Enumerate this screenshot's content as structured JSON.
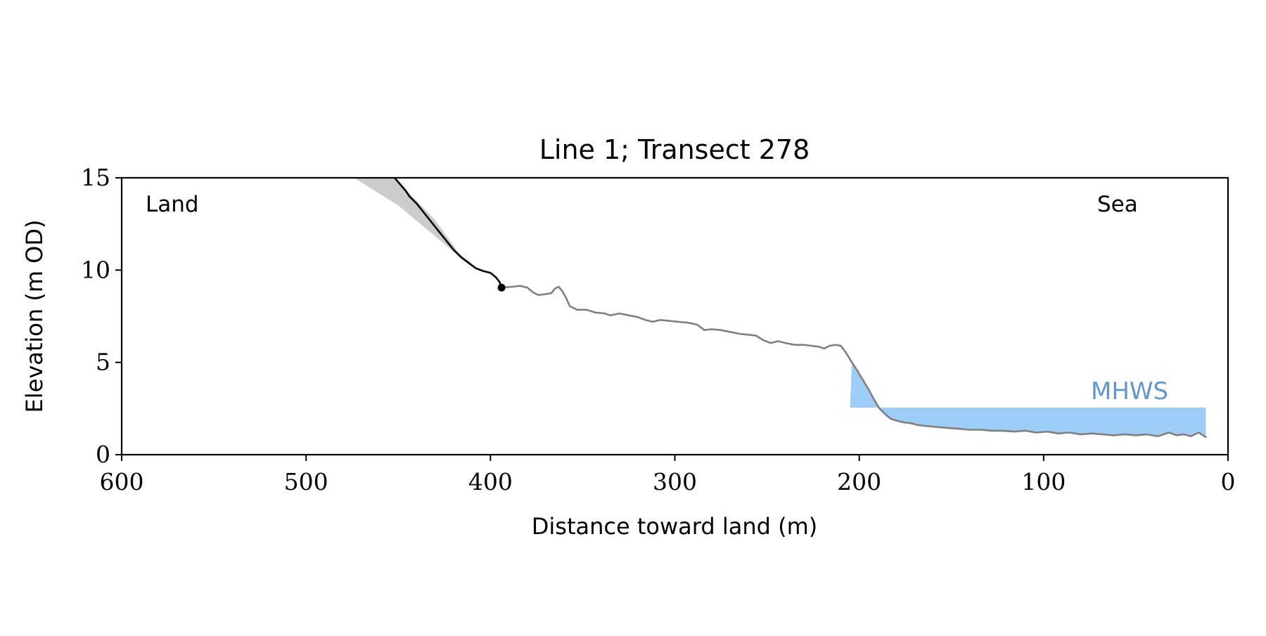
{
  "colors": {
    "profile_active": "#000000",
    "profile_rest": "#808080",
    "wedge": "#cccccc",
    "mhws_fill": "#9ecdf8",
    "mhws_text": "#6397c9",
    "axes": "#000000"
  },
  "chart_data": {
    "type": "line",
    "title": "Line 1; Transect 278",
    "xlabel": "Distance toward land (m)",
    "ylabel": "Elevation (m OD)",
    "xlim": [
      600,
      0
    ],
    "ylim": [
      0,
      15
    ],
    "x_reversed": true,
    "xticks": [
      600,
      500,
      400,
      300,
      200,
      100,
      0
    ],
    "yticks": [
      0,
      5,
      10,
      15
    ],
    "grid": false,
    "annotations": {
      "land": "Land",
      "sea": "Sea",
      "mhws": "MHWS"
    },
    "mhws": {
      "elevation": 2.55,
      "x_start": 205,
      "x_end": 12
    },
    "endpoint": {
      "x": 394,
      "y": 9.05
    },
    "wedge": {
      "points": [
        [
          474,
          15.0
        ],
        [
          452,
          15.0
        ],
        [
          430,
          12.7
        ],
        [
          417,
          10.9
        ],
        [
          405,
          10.0
        ],
        [
          420,
          11.0
        ],
        [
          450,
          13.5
        ]
      ]
    },
    "series": [
      {
        "role": "profile-active",
        "points": [
          [
            452,
            15.0
          ],
          [
            446,
            14.3
          ],
          [
            444,
            14.0
          ],
          [
            440,
            13.6
          ],
          [
            436,
            13.1
          ],
          [
            432,
            12.6
          ],
          [
            428,
            12.1
          ],
          [
            424,
            11.6
          ],
          [
            420,
            11.1
          ],
          [
            416,
            10.7
          ],
          [
            412,
            10.4
          ],
          [
            408,
            10.1
          ],
          [
            404,
            9.95
          ],
          [
            400,
            9.85
          ],
          [
            397,
            9.6
          ],
          [
            395,
            9.35
          ],
          [
            394,
            9.05
          ]
        ]
      },
      {
        "role": "profile",
        "points": [
          [
            394,
            9.05
          ],
          [
            388,
            9.1
          ],
          [
            384,
            9.15
          ],
          [
            380,
            9.05
          ],
          [
            377,
            8.8
          ],
          [
            374,
            8.65
          ],
          [
            370,
            8.7
          ],
          [
            367,
            8.75
          ],
          [
            365,
            9.0
          ],
          [
            363,
            9.1
          ],
          [
            361,
            8.85
          ],
          [
            359,
            8.5
          ],
          [
            357,
            8.05
          ],
          [
            353,
            7.85
          ],
          [
            348,
            7.85
          ],
          [
            343,
            7.7
          ],
          [
            338,
            7.65
          ],
          [
            335,
            7.55
          ],
          [
            330,
            7.65
          ],
          [
            325,
            7.55
          ],
          [
            320,
            7.45
          ],
          [
            316,
            7.3
          ],
          [
            312,
            7.2
          ],
          [
            308,
            7.3
          ],
          [
            303,
            7.25
          ],
          [
            298,
            7.2
          ],
          [
            293,
            7.15
          ],
          [
            288,
            7.05
          ],
          [
            284,
            6.75
          ],
          [
            280,
            6.8
          ],
          [
            275,
            6.75
          ],
          [
            270,
            6.65
          ],
          [
            265,
            6.55
          ],
          [
            260,
            6.5
          ],
          [
            256,
            6.45
          ],
          [
            252,
            6.2
          ],
          [
            248,
            6.05
          ],
          [
            244,
            6.15
          ],
          [
            240,
            6.05
          ],
          [
            235,
            5.95
          ],
          [
            230,
            5.95
          ],
          [
            226,
            5.9
          ],
          [
            222,
            5.85
          ],
          [
            219,
            5.75
          ],
          [
            216,
            5.9
          ],
          [
            213,
            5.95
          ],
          [
            210,
            5.9
          ],
          [
            207,
            5.5
          ],
          [
            204,
            5.0
          ],
          [
            201,
            4.55
          ],
          [
            198,
            4.05
          ],
          [
            195,
            3.55
          ],
          [
            192,
            3.0
          ],
          [
            189,
            2.5
          ],
          [
            186,
            2.2
          ],
          [
            183,
            1.95
          ],
          [
            180,
            1.85
          ],
          [
            176,
            1.75
          ],
          [
            172,
            1.7
          ],
          [
            168,
            1.6
          ],
          [
            163,
            1.55
          ],
          [
            158,
            1.5
          ],
          [
            152,
            1.45
          ],
          [
            146,
            1.4
          ],
          [
            140,
            1.35
          ],
          [
            134,
            1.35
          ],
          [
            128,
            1.3
          ],
          [
            122,
            1.3
          ],
          [
            116,
            1.25
          ],
          [
            110,
            1.3
          ],
          [
            104,
            1.2
          ],
          [
            98,
            1.25
          ],
          [
            92,
            1.15
          ],
          [
            86,
            1.2
          ],
          [
            80,
            1.1
          ],
          [
            74,
            1.15
          ],
          [
            68,
            1.1
          ],
          [
            62,
            1.05
          ],
          [
            56,
            1.1
          ],
          [
            50,
            1.05
          ],
          [
            44,
            1.1
          ],
          [
            38,
            1.0
          ],
          [
            32,
            1.2
          ],
          [
            28,
            1.05
          ],
          [
            24,
            1.1
          ],
          [
            20,
            1.0
          ],
          [
            16,
            1.2
          ],
          [
            12,
            0.95
          ]
        ]
      }
    ]
  }
}
